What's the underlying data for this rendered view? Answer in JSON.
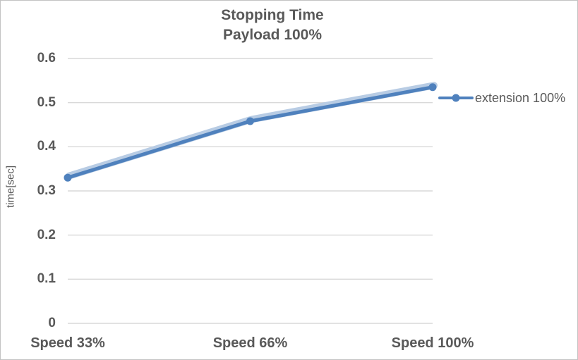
{
  "title": {
    "line1": "Stopping Time",
    "line2": "Payload 100%"
  },
  "y_axis": {
    "label": "time[sec]",
    "ticks": [
      "0.6",
      "0.5",
      "0.4",
      "0.3",
      "0.2",
      "0.1",
      "0"
    ]
  },
  "x_axis": {
    "labels": [
      "Speed 33%",
      "Speed 66%",
      "Speed 100%"
    ]
  },
  "legend": {
    "items": [
      {
        "label": "extension 100%",
        "color": "#4F81BD"
      }
    ]
  },
  "chart_data": {
    "type": "line",
    "title": "Stopping Time\nPayload 100%",
    "xlabel": "",
    "ylabel": "time[sec]",
    "categories": [
      "Speed 33%",
      "Speed 66%",
      "Speed 100%"
    ],
    "series": [
      {
        "name": "extension 100%",
        "values": [
          0.33,
          0.458,
          0.535
        ],
        "color": "#4F81BD",
        "marker": "circle",
        "glow_color": "#B8CCE4"
      }
    ],
    "ylim": [
      0,
      0.6
    ],
    "ytick_step": 0.1,
    "grid": "horizontal-only",
    "gridline_color": "#D9D9D9",
    "text_color": "#595959",
    "legend_position": "right"
  }
}
